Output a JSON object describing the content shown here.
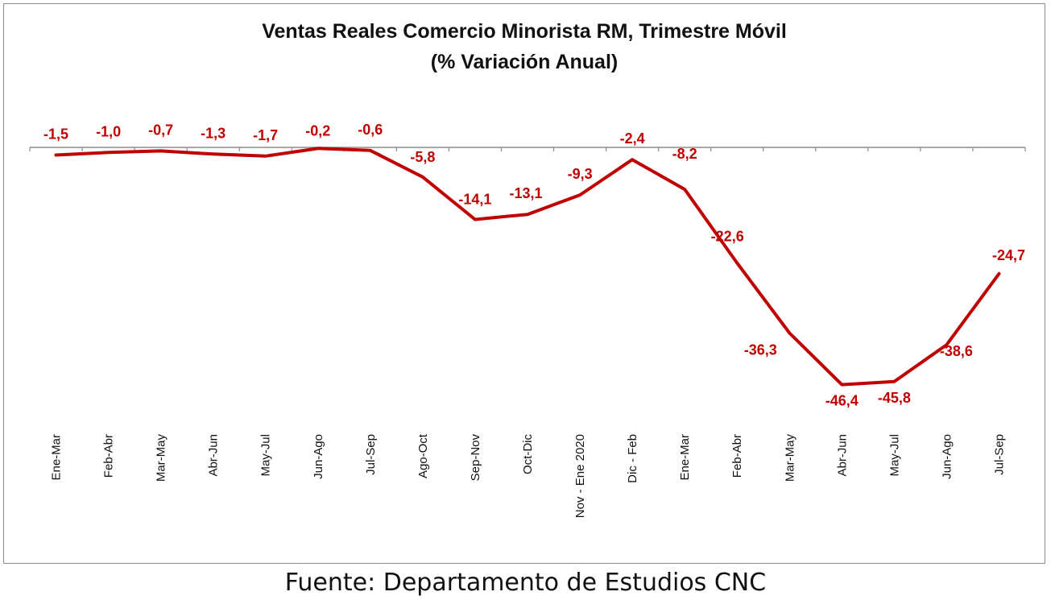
{
  "chart_data": {
    "type": "line",
    "title": "Ventas Reales Comercio Minorista RM, Trimestre Móvil",
    "subtitle": "(% Variación Anual)",
    "categories": [
      "Ene-Mar",
      "Feb-Abr",
      "Mar-May",
      "Abr-Jun",
      "May-Jul",
      "Jun-Ago",
      "Jul-Sep",
      "Ago-Oct",
      "Sep-Nov",
      "Oct-Dic",
      "Nov - Ene 2020",
      "Dic - Feb",
      "Ene-Mar",
      "Feb-Abr",
      "Mar-May",
      "Abr-Jun",
      "May-Jul",
      "Jun-Ago",
      "Jul-Sep"
    ],
    "series": [
      {
        "values": [
          -1.5,
          -1.0,
          -0.7,
          -1.3,
          -1.7,
          -0.2,
          -0.6,
          -5.8,
          -14.1,
          -13.1,
          -9.3,
          -2.4,
          -8.2,
          -22.6,
          -36.3,
          -46.4,
          -45.8,
          -38.6,
          -24.7
        ],
        "labels": [
          "-1,5",
          "-1,0",
          "-0,7",
          "-1,3",
          "-1,7",
          "-0,2",
          "-0,6",
          "-5,8",
          "-14,1",
          "-13,1",
          "-9,3",
          "-2,4",
          "-8,2",
          "-22,6",
          "-36,3",
          "-46,4",
          "-45,8",
          "-38,6",
          "-24,7"
        ],
        "color": "#c00000"
      }
    ],
    "xlabel": "",
    "ylabel": "",
    "ylim": [
      -50,
      0
    ],
    "grid": false,
    "legend": "none"
  },
  "footer": {
    "source": "Fuente: Departamento de Estudios CNC"
  }
}
